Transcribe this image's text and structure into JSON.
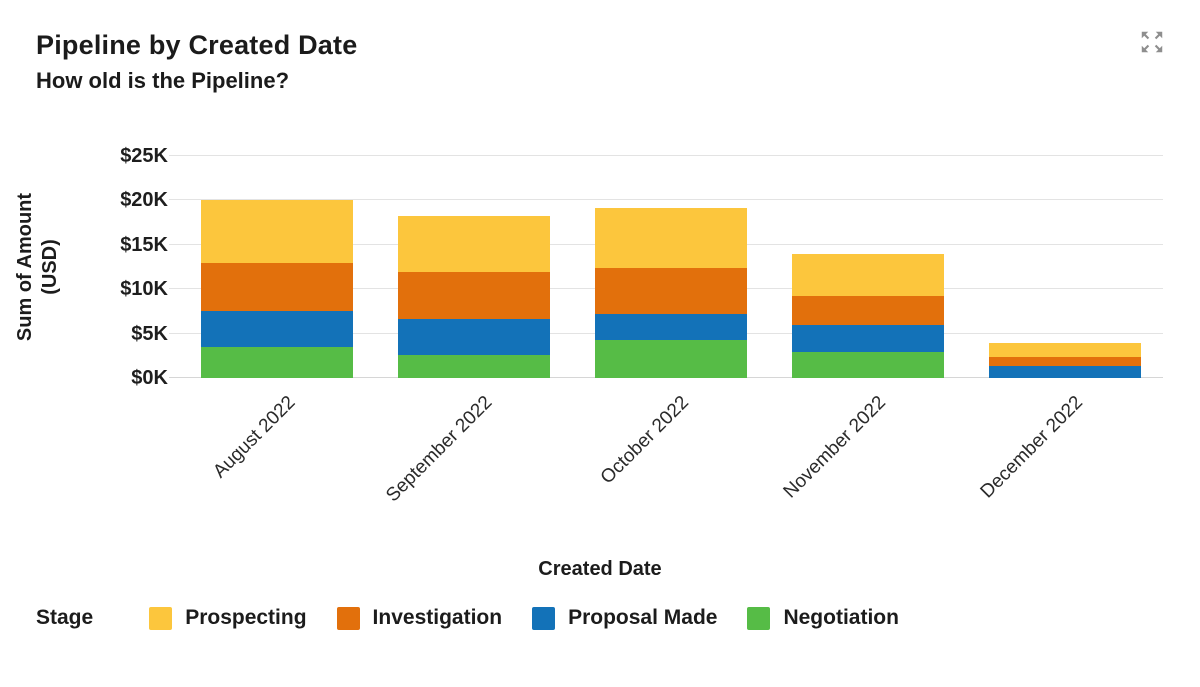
{
  "header": {
    "title": "Pipeline by Created Date",
    "subtitle": "How old is the Pipeline?"
  },
  "chart_data": {
    "type": "bar",
    "stacked": true,
    "title": "Pipeline by Created Date",
    "categories": [
      "August 2022",
      "September 2022",
      "October 2022",
      "November 2022",
      "December 2022"
    ],
    "series": [
      {
        "name": "Negotiation",
        "color": "#56BC46",
        "values": [
          3.5,
          2.6,
          4.3,
          2.9,
          0
        ]
      },
      {
        "name": "Proposal Made",
        "color": "#1372B8",
        "values": [
          4.1,
          4.1,
          2.9,
          3.1,
          1.3
        ]
      },
      {
        "name": "Investigation",
        "color": "#E2700C",
        "values": [
          5.4,
          5.2,
          5.2,
          3.2,
          1.1
        ]
      },
      {
        "name": "Prospecting",
        "color": "#FCC63D",
        "values": [
          7.0,
          6.4,
          6.8,
          4.8,
          1.5
        ]
      }
    ],
    "stack_order_note": "series listed bottom-to-top",
    "totals": [
      20.0,
      18.3,
      19.2,
      14.0,
      3.9
    ],
    "values_unit": "thousand USD",
    "xlabel": "Created Date",
    "ylabel": "Sum of Amount (USD)",
    "ylabel_lines": [
      "Sum of Amount",
      "(USD)"
    ],
    "y_ticks": [
      {
        "value": 0,
        "label": "$0K"
      },
      {
        "value": 5,
        "label": "$5K"
      },
      {
        "value": 10,
        "label": "$10K"
      },
      {
        "value": 15,
        "label": "$15K"
      },
      {
        "value": 20,
        "label": "$20K"
      },
      {
        "value": 25,
        "label": "$25K"
      }
    ],
    "ylim": [
      0,
      25
    ],
    "grid": true,
    "legend_title": "Stage",
    "legend_position": "bottom",
    "legend_order": [
      "Prospecting",
      "Investigation",
      "Proposal Made",
      "Negotiation"
    ]
  },
  "colors": {
    "prospecting": "#FCC63D",
    "investigation": "#E2700C",
    "proposal_made": "#1372B8",
    "negotiation": "#56BC46",
    "gridline": "#E3E3E3",
    "icon_gray": "#8E8E8E",
    "text": "#1C1C1C"
  }
}
